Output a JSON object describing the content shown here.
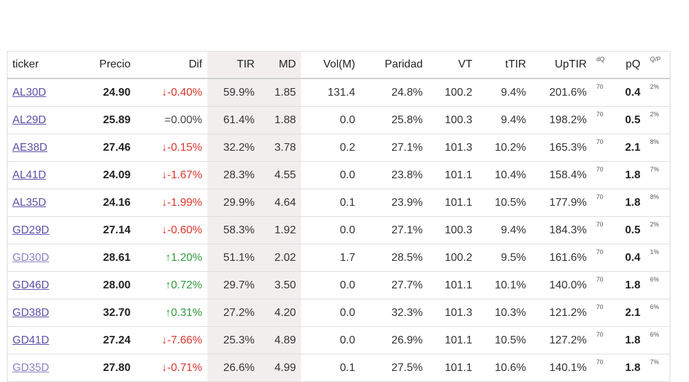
{
  "table": {
    "headers": {
      "ticker": "ticker",
      "precio": "Precio",
      "dif": "Dif",
      "tir": "TIR",
      "md": "MD",
      "vol": "Vol(M)",
      "paridad": "Paridad",
      "vt": "VT",
      "ttir": "tTIR",
      "uptir": "UpTIR",
      "dq": "dQ",
      "pq": "pQ",
      "qp": "Q/P"
    },
    "rows": [
      {
        "ticker": "AL30D",
        "precio": "24.90",
        "dif": "↓-0.40%",
        "dir": "down",
        "tir": "59.9%",
        "md": "1.85",
        "vol": "131.4",
        "paridad": "24.8%",
        "vt": "100.2",
        "ttir": "9.4%",
        "uptir": "201.6%",
        "dq": "70",
        "pq": "0.4",
        "qp": "2%"
      },
      {
        "ticker": "AL29D",
        "precio": "25.89",
        "dif": "=0.00%",
        "dir": "flat",
        "tir": "61.4%",
        "md": "1.88",
        "vol": "0.0",
        "paridad": "25.8%",
        "vt": "100.3",
        "ttir": "9.4%",
        "uptir": "198.2%",
        "dq": "70",
        "pq": "0.5",
        "qp": "2%"
      },
      {
        "ticker": "AE38D",
        "precio": "27.46",
        "dif": "↓-0.15%",
        "dir": "down",
        "tir": "32.2%",
        "md": "3.78",
        "vol": "0.2",
        "paridad": "27.1%",
        "vt": "101.3",
        "ttir": "10.2%",
        "uptir": "165.3%",
        "dq": "70",
        "pq": "2.1",
        "qp": "8%"
      },
      {
        "ticker": "AL41D",
        "precio": "24.09",
        "dif": "↓-1.67%",
        "dir": "down",
        "tir": "28.3%",
        "md": "4.55",
        "vol": "0.0",
        "paridad": "23.8%",
        "vt": "101.1",
        "ttir": "10.4%",
        "uptir": "158.4%",
        "dq": "70",
        "pq": "1.8",
        "qp": "7%"
      },
      {
        "ticker": "AL35D",
        "precio": "24.16",
        "dif": "↓-1.99%",
        "dir": "down",
        "tir": "29.9%",
        "md": "4.64",
        "vol": "0.1",
        "paridad": "23.9%",
        "vt": "101.1",
        "ttir": "10.5%",
        "uptir": "177.9%",
        "dq": "70",
        "pq": "1.8",
        "qp": "8%"
      },
      {
        "ticker": "GD29D",
        "precio": "27.14",
        "dif": "↓-0.60%",
        "dir": "down",
        "tir": "58.3%",
        "md": "1.92",
        "vol": "0.0",
        "paridad": "27.1%",
        "vt": "100.3",
        "ttir": "9.4%",
        "uptir": "184.3%",
        "dq": "70",
        "pq": "0.5",
        "qp": "2%"
      },
      {
        "ticker": "GD30D",
        "precio": "28.61",
        "dif": "↑1.20%",
        "dir": "up",
        "tir": "51.1%",
        "md": "2.02",
        "vol": "1.7",
        "paridad": "28.5%",
        "vt": "100.2",
        "ttir": "9.5%",
        "uptir": "161.6%",
        "dq": "70",
        "pq": "0.4",
        "qp": "1%"
      },
      {
        "ticker": "GD46D",
        "precio": "28.00",
        "dif": "↑0.72%",
        "dir": "up",
        "tir": "29.7%",
        "md": "3.50",
        "vol": "0.0",
        "paridad": "27.7%",
        "vt": "101.1",
        "ttir": "10.1%",
        "uptir": "140.0%",
        "dq": "70",
        "pq": "1.8",
        "qp": "6%"
      },
      {
        "ticker": "GD38D",
        "precio": "32.70",
        "dif": "↑0.31%",
        "dir": "up",
        "tir": "27.2%",
        "md": "4.20",
        "vol": "0.0",
        "paridad": "32.3%",
        "vt": "101.3",
        "ttir": "10.3%",
        "uptir": "121.2%",
        "dq": "70",
        "pq": "2.1",
        "qp": "6%"
      },
      {
        "ticker": "GD41D",
        "precio": "27.24",
        "dif": "↓-7.66%",
        "dir": "down",
        "tir": "25.3%",
        "md": "4.89",
        "vol": "0.0",
        "paridad": "26.9%",
        "vt": "101.1",
        "ttir": "10.5%",
        "uptir": "127.2%",
        "dq": "70",
        "pq": "1.8",
        "qp": "6%"
      },
      {
        "ticker": "GD35D",
        "precio": "27.80",
        "dif": "↓-0.71%",
        "dir": "down",
        "tir": "26.6%",
        "md": "4.99",
        "vol": "0.1",
        "paridad": "27.5%",
        "vt": "101.1",
        "ttir": "10.6%",
        "uptir": "140.1%",
        "dq": "70",
        "pq": "1.8",
        "qp": "7%"
      }
    ]
  },
  "colors": {
    "down": "#d9342b",
    "up": "#2e9a3a",
    "link": "#5a4fa8",
    "shaded_column": "#f2eeee"
  }
}
